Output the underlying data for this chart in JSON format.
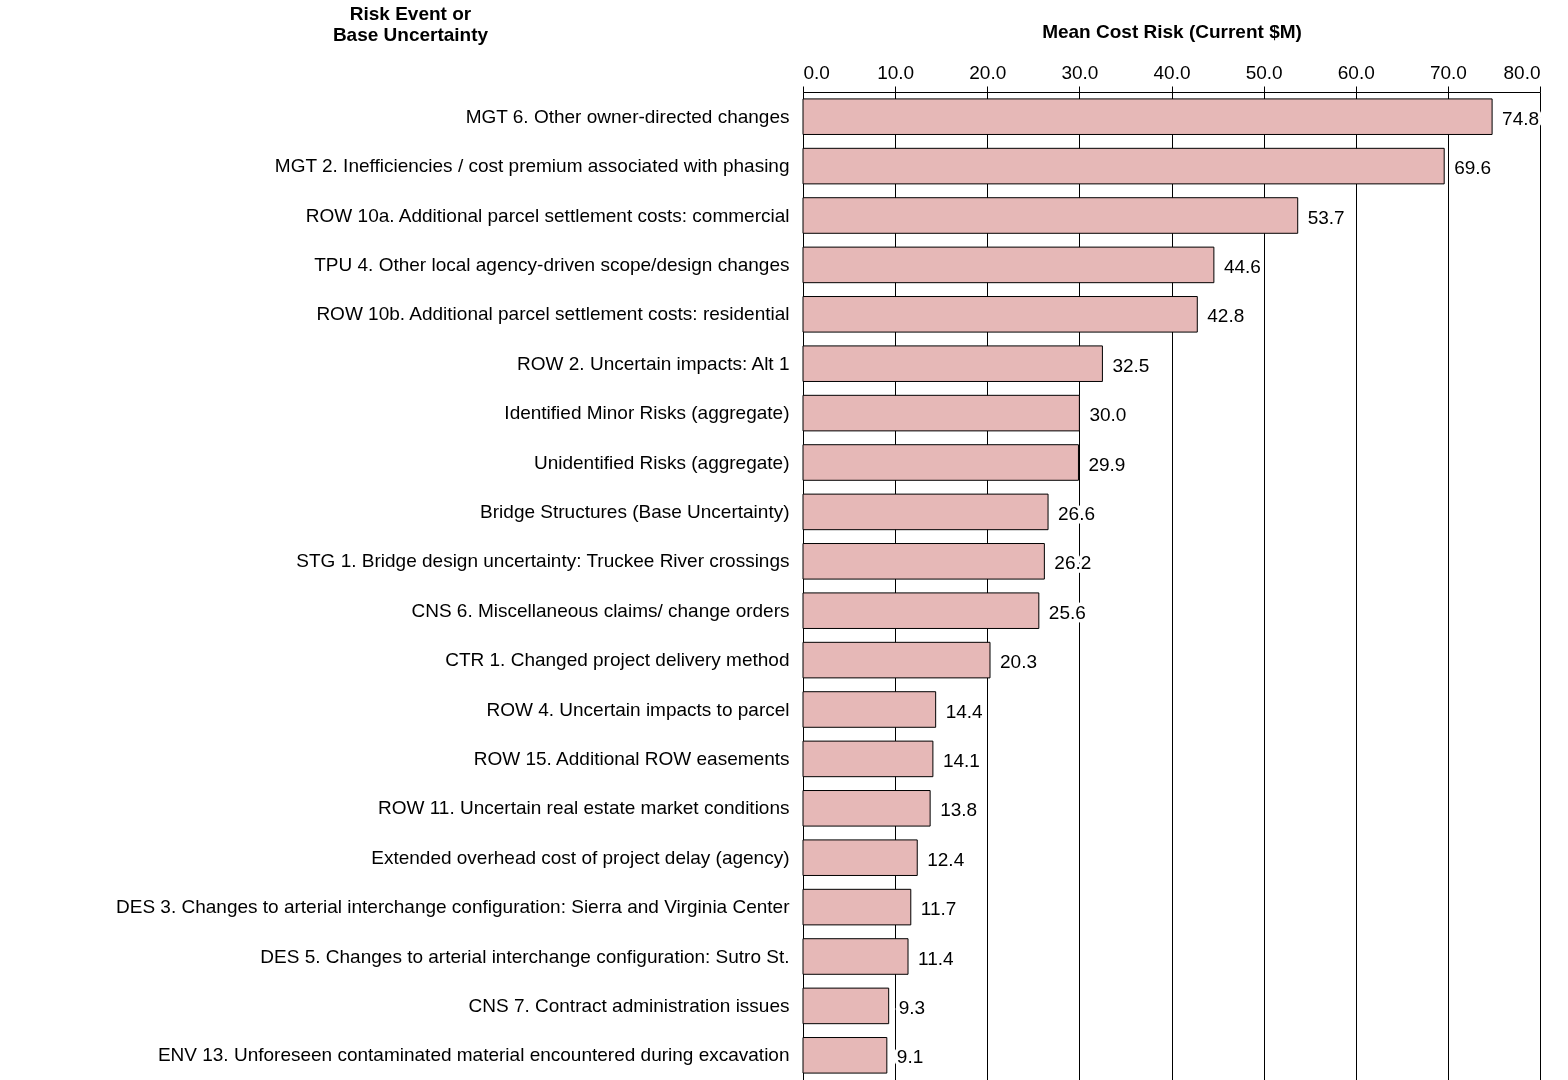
{
  "chart_data": {
    "type": "bar",
    "orientation": "horizontal",
    "xlabel": "Mean Cost Risk (Current $M)",
    "ylabel": "Risk Event or Base Uncertainty",
    "categories": [
      "MGT 6. Other owner-directed changes",
      "MGT 2. Inefficiencies / cost premium associated with phasing",
      "ROW 10a. Additional parcel settlement costs: commercial",
      "TPU 4. Other local agency-driven scope/design changes",
      "ROW 10b. Additional parcel settlement costs: residential",
      "ROW 2. Uncertain impacts: Alt 1",
      "Identified Minor Risks (aggregate)",
      "Unidentified Risks (aggregate)",
      "Bridge Structures (Base Uncertainty)",
      "STG 1. Bridge design uncertainty: Truckee River crossings",
      "CNS 6. Miscellaneous claims/ change orders",
      "CTR 1. Changed project delivery method",
      "ROW 4. Uncertain impacts to parcel",
      "ROW 15. Additional ROW easements",
      "ROW 11. Uncertain real estate market conditions",
      "Extended overhead cost of project delay (agency)",
      "DES 3. Changes to arterial interchange configuration: Sierra and Virginia Center",
      "DES 5. Changes to arterial interchange configuration: Sutro St.",
      "CNS 7. Contract administration issues",
      "ENV 13. Unforeseen contaminated material encountered during excavation"
    ],
    "values": [
      74.8,
      69.6,
      53.7,
      44.6,
      42.8,
      32.5,
      30.0,
      29.9,
      26.6,
      26.2,
      25.6,
      20.3,
      14.4,
      14.1,
      13.8,
      12.4,
      11.7,
      11.4,
      9.3,
      9.1
    ],
    "value_labels": [
      "74.8",
      "69.6",
      "53.7",
      "44.6",
      "42.8",
      "32.5",
      "30.0",
      "29.9",
      "26.6",
      "26.2",
      "25.6",
      "20.3",
      "14.4",
      "14.1",
      "13.8",
      "12.4",
      "11.7",
      "11.4",
      "9.3",
      "9.1"
    ],
    "color": "#e6b8b7",
    "xlim": [
      0,
      80
    ],
    "xticks": [
      {
        "value": 0,
        "label": "0.0"
      },
      {
        "value": 10,
        "label": "10.0"
      },
      {
        "value": 20,
        "label": "20.0"
      },
      {
        "value": 30,
        "label": "30.0"
      },
      {
        "value": 40,
        "label": "40.0"
      },
      {
        "value": 50,
        "label": "50.0"
      },
      {
        "value": 60,
        "label": "60.0"
      },
      {
        "value": 70,
        "label": "70.0"
      },
      {
        "value": 80,
        "label": "80.0"
      }
    ],
    "grid": "x"
  }
}
